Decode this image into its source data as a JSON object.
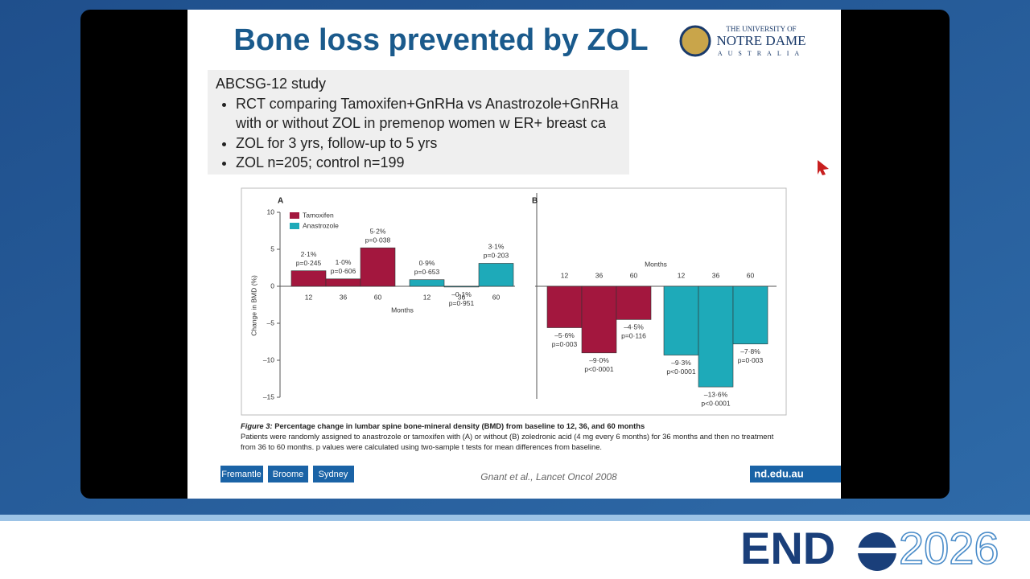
{
  "slide": {
    "title": "Bone loss prevented by ZOL",
    "logo": {
      "line1": "THE UNIVERSITY OF",
      "line2": "NOTRE DAME",
      "line3": "AUSTRALIA"
    },
    "study": {
      "heading": "ABCSG-12 study",
      "bullets": [
        "RCT comparing Tamoxifen+GnRHa vs Anastrozole+GnRHa with or without ZOL in premenop women w ER+ breast ca",
        "ZOL for 3 yrs, follow-up to 5 yrs",
        "ZOL n=205; control n=199"
      ]
    },
    "caption": {
      "label": "Figure 3:",
      "title": "Percentage change in lumbar spine bone-mineral density (BMD) from baseline to 12, 36, and 60 months",
      "text": "Patients were randomly assigned to anastrozole or tamoxifen with (A) or without (B) zoledronic acid (4 mg every 6 months) for 36 months and then no treatment from 36 to 60 months. p values were calculated using two-sample t tests for mean differences from baseline."
    },
    "footer": {
      "campuses": [
        "Fremantle",
        "Broome",
        "Sydney"
      ],
      "citation": "Gnant et al., Lancet Oncol 2008",
      "url": "nd.edu.au"
    }
  },
  "conference": {
    "name_start": "END",
    "year": "2026"
  },
  "chart_data": [
    {
      "type": "bar",
      "panel": "A",
      "ylabel": "Change in BMD (%)",
      "xlabel": "Months",
      "categories": [
        "12",
        "36",
        "60"
      ],
      "series": [
        {
          "name": "Tamoxifen",
          "color": "#a3173e",
          "values": [
            2.1,
            1.0,
            5.2
          ],
          "value_labels": [
            "2·1%",
            "1·0%",
            "5·2%"
          ],
          "p_values": [
            "p=0·245",
            "p=0·606",
            "p=0·038"
          ]
        },
        {
          "name": "Anastrozole",
          "color": "#1eaab9",
          "values": [
            0.9,
            -0.1,
            3.1
          ],
          "value_labels": [
            "0·9%",
            "–0·1%",
            "3·1%"
          ],
          "p_values": [
            "p=0·653",
            "p=0·951",
            "p=0·203"
          ]
        }
      ],
      "ylim": [
        -15,
        10
      ],
      "yticks": [
        10,
        5,
        0,
        {
          "value": -5,
          "label": "–5"
        },
        {
          "value": -10,
          "label": "–10"
        },
        {
          "value": -15,
          "label": "–15"
        }
      ],
      "legend": "upper-left"
    },
    {
      "type": "bar",
      "panel": "B",
      "xlabel": "Months",
      "categories": [
        "12",
        "36",
        "60"
      ],
      "series": [
        {
          "color": "#a3173e",
          "values": [
            -5.6,
            -9.0,
            -4.5
          ],
          "value_labels": [
            "–5·6%",
            "–9·0%",
            "–4·5%"
          ],
          "p_values": [
            "p=0·003",
            "p<0·0001",
            "p=0·116"
          ]
        },
        {
          "color": "#1eaab9",
          "values": [
            -9.3,
            -13.6,
            -7.8
          ],
          "value_labels": [
            "–9·3%",
            "–13·6%",
            "–7·8%"
          ],
          "p_values": [
            "p<0·0001",
            "p<0·0001",
            "p=0·003"
          ]
        }
      ],
      "ylim": [
        -15,
        10
      ]
    }
  ]
}
